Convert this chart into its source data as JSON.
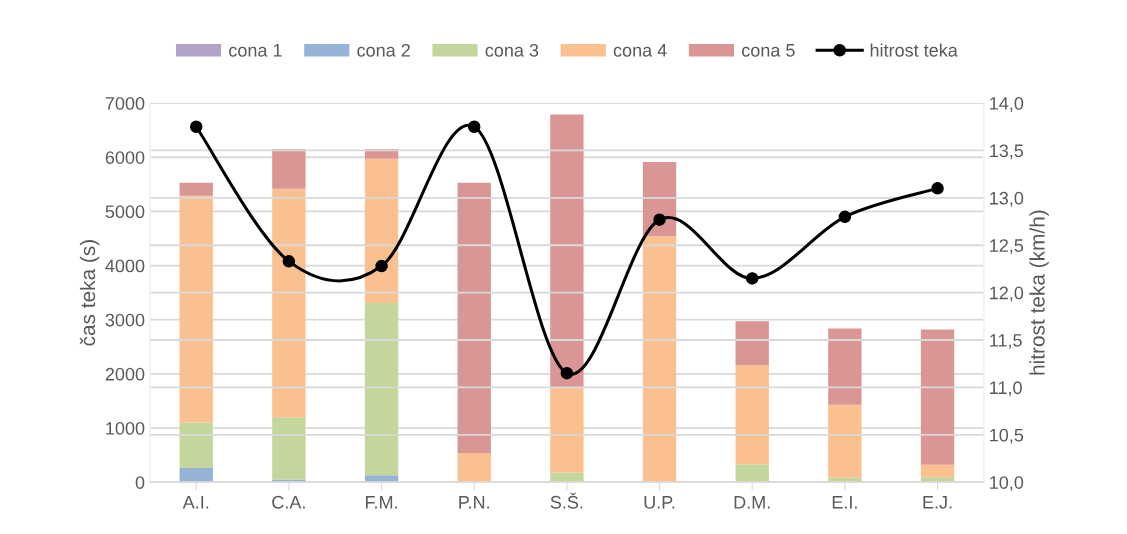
{
  "chart_data": {
    "type": "bar",
    "stacked": true,
    "categories": [
      "A.I.",
      "C.A.",
      "F.M.",
      "P.N.",
      "S.Š.",
      "U.P.",
      "D.M.",
      "E.I.",
      "E.J."
    ],
    "ylabel": "čas teka (s)",
    "y2label": "hitrost teka (km/h)",
    "ylim": [
      0,
      7000
    ],
    "yticks": [
      0,
      1000,
      2000,
      3000,
      4000,
      5000,
      6000,
      7000
    ],
    "y2lim": [
      10,
      14
    ],
    "y2ticks": [
      {
        "value": 10,
        "label": "10,0"
      },
      {
        "value": 10.5,
        "label": "10,5"
      },
      {
        "value": 11,
        "label": "11,0"
      },
      {
        "value": 11.5,
        "label": "11,5"
      },
      {
        "value": 12,
        "label": "12,0"
      },
      {
        "value": 12.5,
        "label": "12,5"
      },
      {
        "value": 13,
        "label": "13,0"
      },
      {
        "value": 13.5,
        "label": "13,5"
      },
      {
        "value": 14,
        "label": "14,0"
      }
    ],
    "grid": "y",
    "legend": "top",
    "series": [
      {
        "name": "cona 1",
        "color": "#b3a2c7",
        "values": [
          0,
          0,
          0,
          0,
          0,
          0,
          0,
          0,
          0
        ]
      },
      {
        "name": "cona 2",
        "color": "#95b3d7",
        "values": [
          260,
          50,
          130,
          0,
          0,
          0,
          0,
          0,
          0
        ]
      },
      {
        "name": "cona 3",
        "color": "#c3d69b",
        "values": [
          840,
          1150,
          3180,
          null,
          180,
          null,
          330,
          80,
          90
        ]
      },
      {
        "name": "cona 4",
        "color": "#fac090",
        "values": [
          4190,
          4220,
          2660,
          540,
          1560,
          4540,
          1830,
          1350,
          230
        ]
      },
      {
        "name": "cona 5",
        "color": "#d99694",
        "values": [
          240,
          730,
          180,
          4990,
          5050,
          1370,
          810,
          1410,
          2500
        ]
      },
      {
        "name": "hitrost teka",
        "type": "line",
        "axis": "y2",
        "color": "#000000",
        "marker": "circle",
        "line_style": "solid",
        "values": [
          13.75,
          12.33,
          12.28,
          13.75,
          11.15,
          12.77,
          12.15,
          12.8,
          13.1
        ]
      }
    ]
  }
}
